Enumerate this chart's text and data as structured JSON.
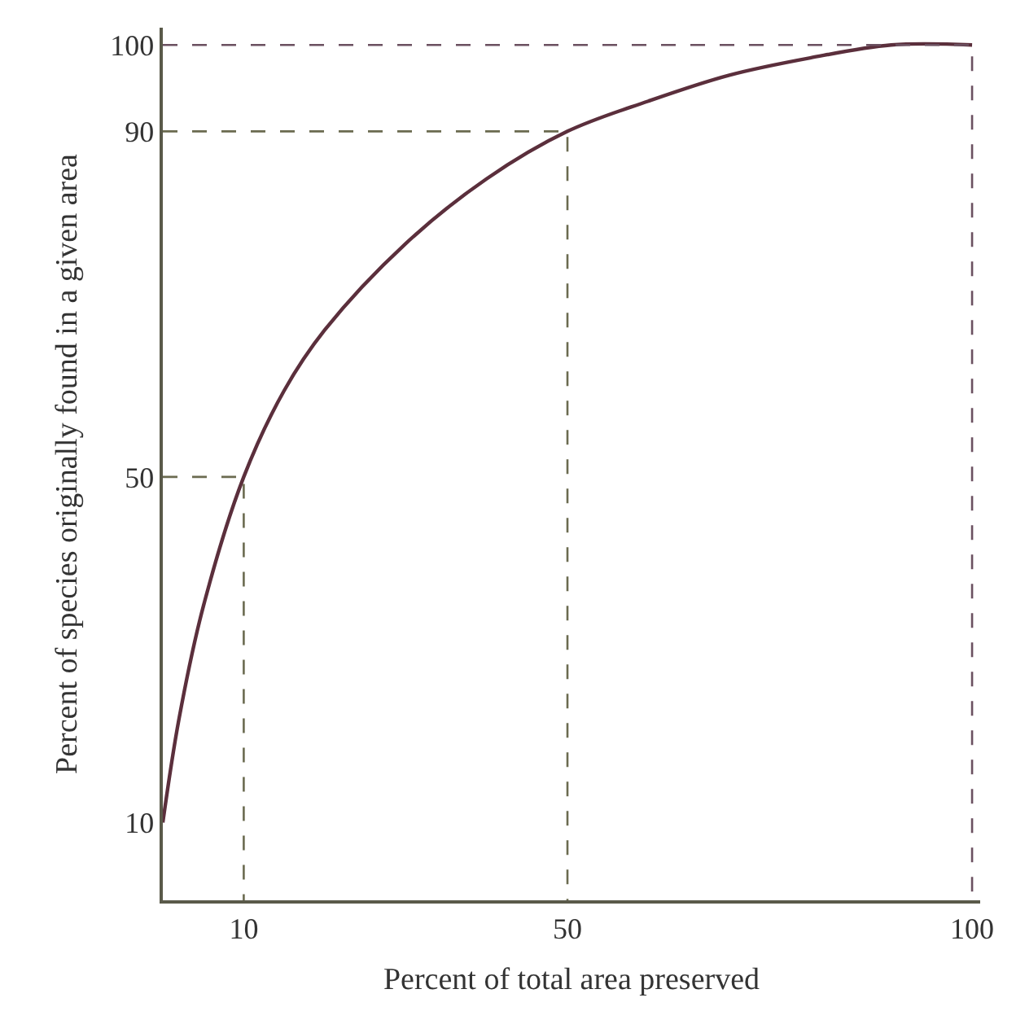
{
  "chart_data": {
    "type": "line",
    "xlabel": "Percent of total area preserved",
    "ylabel": "Percent of species originally found in a given area",
    "xlim": [
      0,
      101
    ],
    "ylim": [
      1,
      102
    ],
    "xticks": [
      10,
      50,
      100
    ],
    "yticks": [
      10,
      50,
      90,
      100
    ],
    "marker": "none",
    "series": [
      {
        "color": "#5b2f3c",
        "line_style": "solid",
        "x": [
          0,
          2,
          5,
          10,
          15,
          20,
          30,
          40,
          50,
          60,
          70,
          80,
          90,
          100
        ],
        "values": [
          10,
          22,
          35,
          50,
          60,
          67,
          77,
          84.5,
          90,
          93.5,
          96.5,
          98.5,
          100,
          100
        ]
      },
      {
        "color": "#6b6b50",
        "line_style": "dashed",
        "x": [
          0,
          10,
          10
        ],
        "values": [
          50,
          50,
          1
        ]
      },
      {
        "color": "#6b6b50",
        "line_style": "dashed",
        "x": [
          0,
          50,
          50
        ],
        "values": [
          90,
          90,
          1
        ]
      },
      {
        "color": "#6b5060",
        "line_style": "dashed",
        "x": [
          0,
          100,
          100
        ],
        "values": [
          100,
          100,
          1
        ]
      }
    ]
  }
}
